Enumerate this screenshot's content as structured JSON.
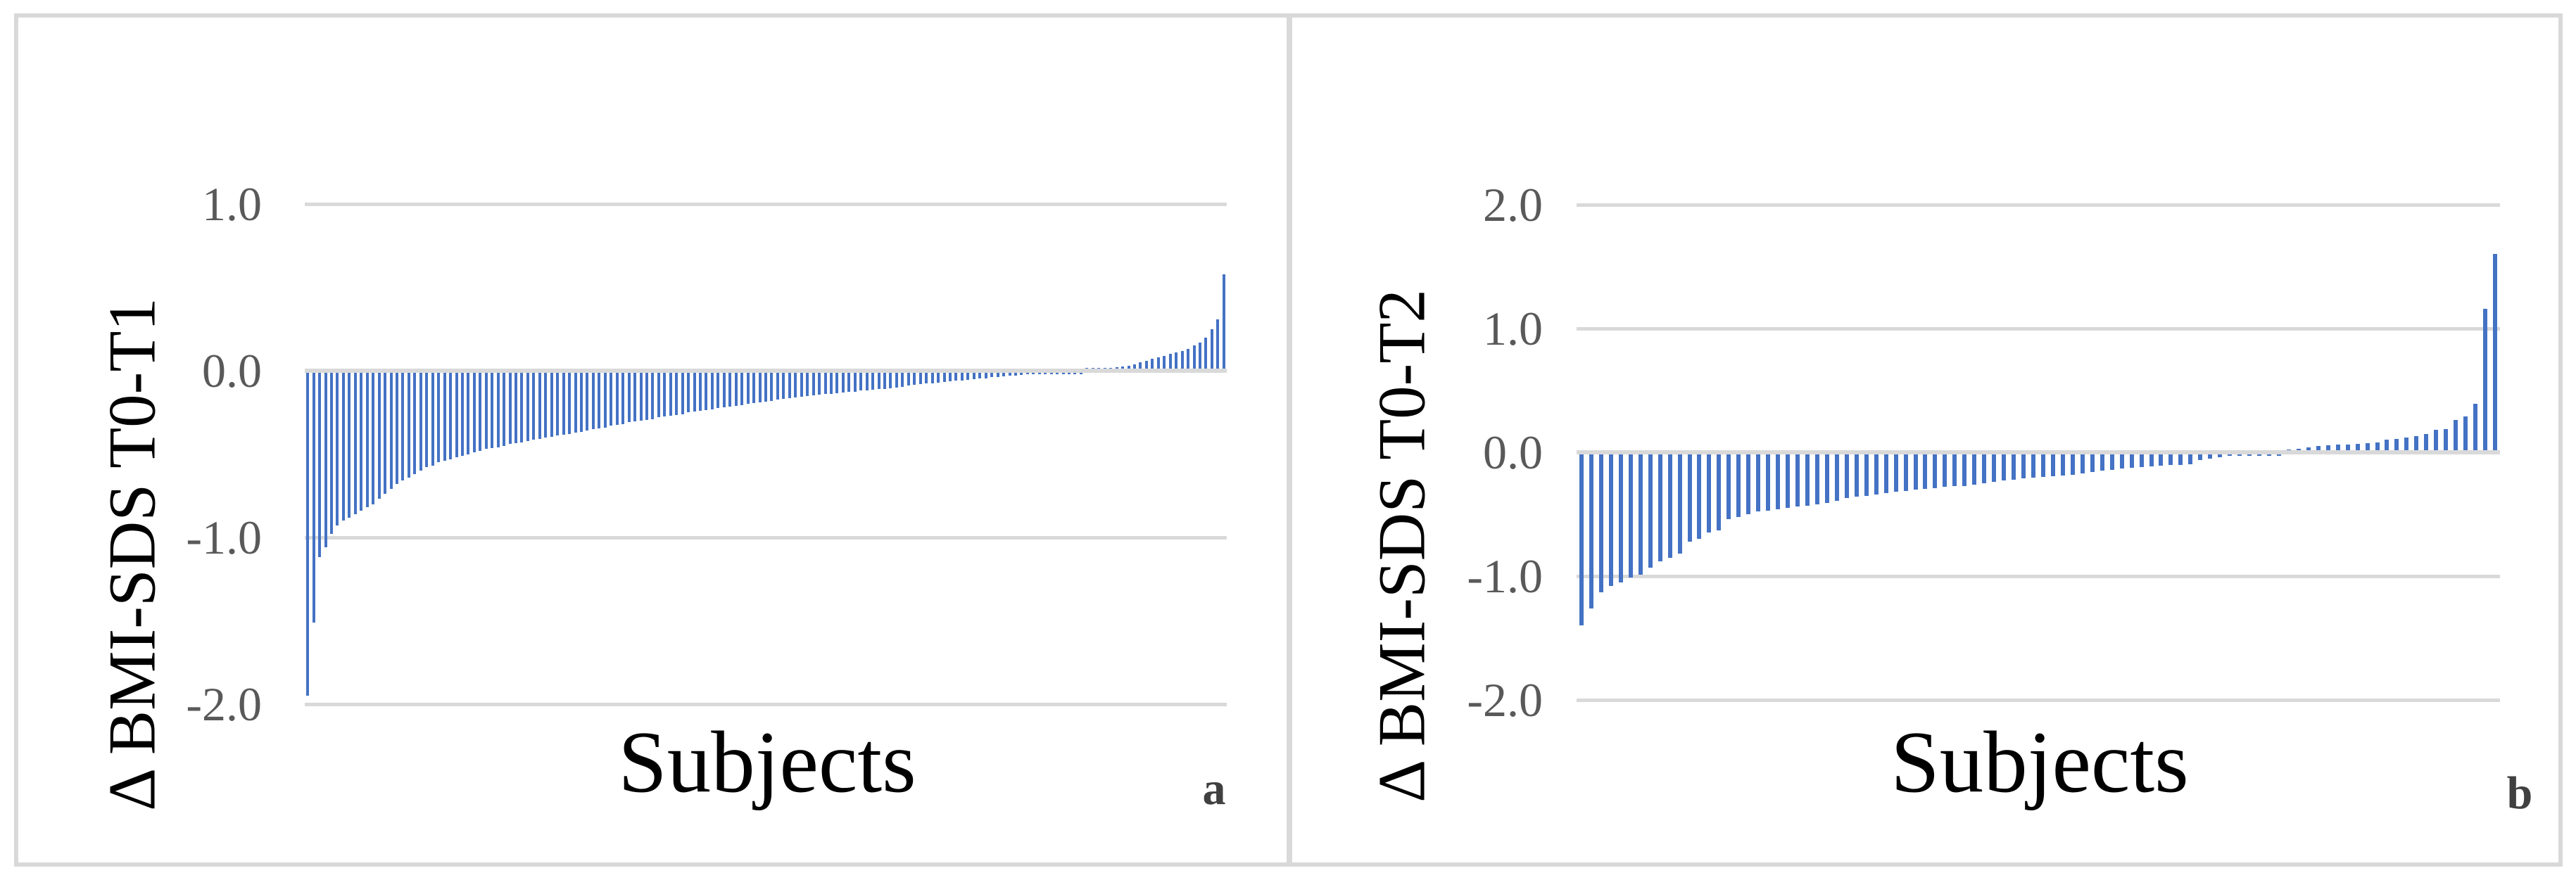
{
  "figure": {
    "background": "#ffffff",
    "border_color": "#d9d9d9",
    "bar_color": "#4472c4",
    "gridline_color": "#d9d9d9",
    "tick_label_color": "#595959",
    "panel_letters": [
      "a",
      "b"
    ]
  },
  "chart_data": [
    {
      "type": "bar",
      "panel_label": "a",
      "title": "",
      "xlabel": "Subjects",
      "ylabel": "Δ BMI-SDS T0-T1",
      "x_description": "individual subjects, one thin bar each, sorted ascending",
      "ylim": [
        -2.0,
        1.0
      ],
      "y_ticks": [
        1.0,
        0.0,
        -1.0,
        -2.0
      ],
      "y_tick_labels": [
        "1.0",
        "0.0",
        "-1.0",
        "-2.0"
      ],
      "grid": true,
      "legend": false,
      "n_bars": 155,
      "values": [
        -1.95,
        -1.51,
        -1.12,
        -1.06,
        -0.98,
        -0.93,
        -0.9,
        -0.88,
        -0.86,
        -0.84,
        -0.82,
        -0.8,
        -0.77,
        -0.74,
        -0.71,
        -0.68,
        -0.66,
        -0.64,
        -0.62,
        -0.6,
        -0.58,
        -0.57,
        -0.55,
        -0.54,
        -0.53,
        -0.52,
        -0.51,
        -0.5,
        -0.49,
        -0.48,
        -0.47,
        -0.465,
        -0.46,
        -0.45,
        -0.44,
        -0.435,
        -0.43,
        -0.42,
        -0.415,
        -0.41,
        -0.4,
        -0.395,
        -0.39,
        -0.385,
        -0.38,
        -0.37,
        -0.365,
        -0.36,
        -0.35,
        -0.345,
        -0.34,
        -0.33,
        -0.325,
        -0.32,
        -0.31,
        -0.305,
        -0.3,
        -0.295,
        -0.29,
        -0.28,
        -0.275,
        -0.27,
        -0.265,
        -0.26,
        -0.25,
        -0.245,
        -0.24,
        -0.235,
        -0.23,
        -0.225,
        -0.22,
        -0.215,
        -0.21,
        -0.205,
        -0.2,
        -0.195,
        -0.19,
        -0.185,
        -0.18,
        -0.175,
        -0.17,
        -0.165,
        -0.16,
        -0.155,
        -0.15,
        -0.148,
        -0.145,
        -0.14,
        -0.138,
        -0.135,
        -0.13,
        -0.128,
        -0.125,
        -0.12,
        -0.118,
        -0.115,
        -0.11,
        -0.108,
        -0.105,
        -0.1,
        -0.095,
        -0.09,
        -0.085,
        -0.08,
        -0.078,
        -0.075,
        -0.07,
        -0.068,
        -0.065,
        -0.06,
        -0.058,
        -0.055,
        -0.05,
        -0.048,
        -0.045,
        -0.04,
        -0.038,
        -0.035,
        -0.03,
        -0.028,
        -0.025,
        -0.022,
        -0.02,
        -0.018,
        -0.015,
        -0.012,
        -0.01,
        -0.008,
        -0.006,
        -0.004,
        -0.002,
        0.002,
        0.004,
        0.006,
        0.01,
        0.015,
        0.02,
        0.025,
        0.03,
        0.04,
        0.05,
        0.06,
        0.07,
        0.08,
        0.09,
        0.1,
        0.11,
        0.12,
        0.13,
        0.15,
        0.17,
        0.2,
        0.25,
        0.31,
        0.58
      ]
    },
    {
      "type": "bar",
      "panel_label": "b",
      "title": "",
      "xlabel": "Subjects",
      "ylabel": "Δ BMI-SDS T0-T2",
      "x_description": "individual subjects, one thin bar each, sorted ascending",
      "ylim": [
        -2.0,
        2.0
      ],
      "y_ticks": [
        2.0,
        1.0,
        0.0,
        -1.0,
        -2.0
      ],
      "y_tick_labels": [
        "2.0",
        "1.0",
        "0.0",
        "-1.0",
        "-2.0"
      ],
      "grid": true,
      "legend": false,
      "n_bars": 94,
      "values": [
        -1.4,
        -1.26,
        -1.13,
        -1.08,
        -1.05,
        -1.01,
        -0.99,
        -0.93,
        -0.88,
        -0.85,
        -0.82,
        -0.72,
        -0.7,
        -0.65,
        -0.63,
        -0.54,
        -0.52,
        -0.5,
        -0.48,
        -0.47,
        -0.46,
        -0.45,
        -0.44,
        -0.43,
        -0.42,
        -0.41,
        -0.39,
        -0.37,
        -0.36,
        -0.35,
        -0.34,
        -0.33,
        -0.32,
        -0.31,
        -0.3,
        -0.295,
        -0.29,
        -0.28,
        -0.275,
        -0.27,
        -0.26,
        -0.25,
        -0.24,
        -0.23,
        -0.22,
        -0.21,
        -0.205,
        -0.2,
        -0.195,
        -0.19,
        -0.18,
        -0.17,
        -0.16,
        -0.15,
        -0.14,
        -0.13,
        -0.125,
        -0.12,
        -0.115,
        -0.11,
        -0.105,
        -0.1,
        -0.095,
        -0.06,
        -0.05,
        -0.04,
        -0.03,
        -0.025,
        -0.02,
        -0.015,
        -0.01,
        -0.005,
        0.02,
        0.03,
        0.04,
        0.05,
        0.055,
        0.06,
        0.065,
        0.07,
        0.075,
        0.08,
        0.1,
        0.11,
        0.12,
        0.13,
        0.15,
        0.18,
        0.19,
        0.26,
        0.29,
        0.39,
        1.16,
        1.6
      ]
    }
  ]
}
